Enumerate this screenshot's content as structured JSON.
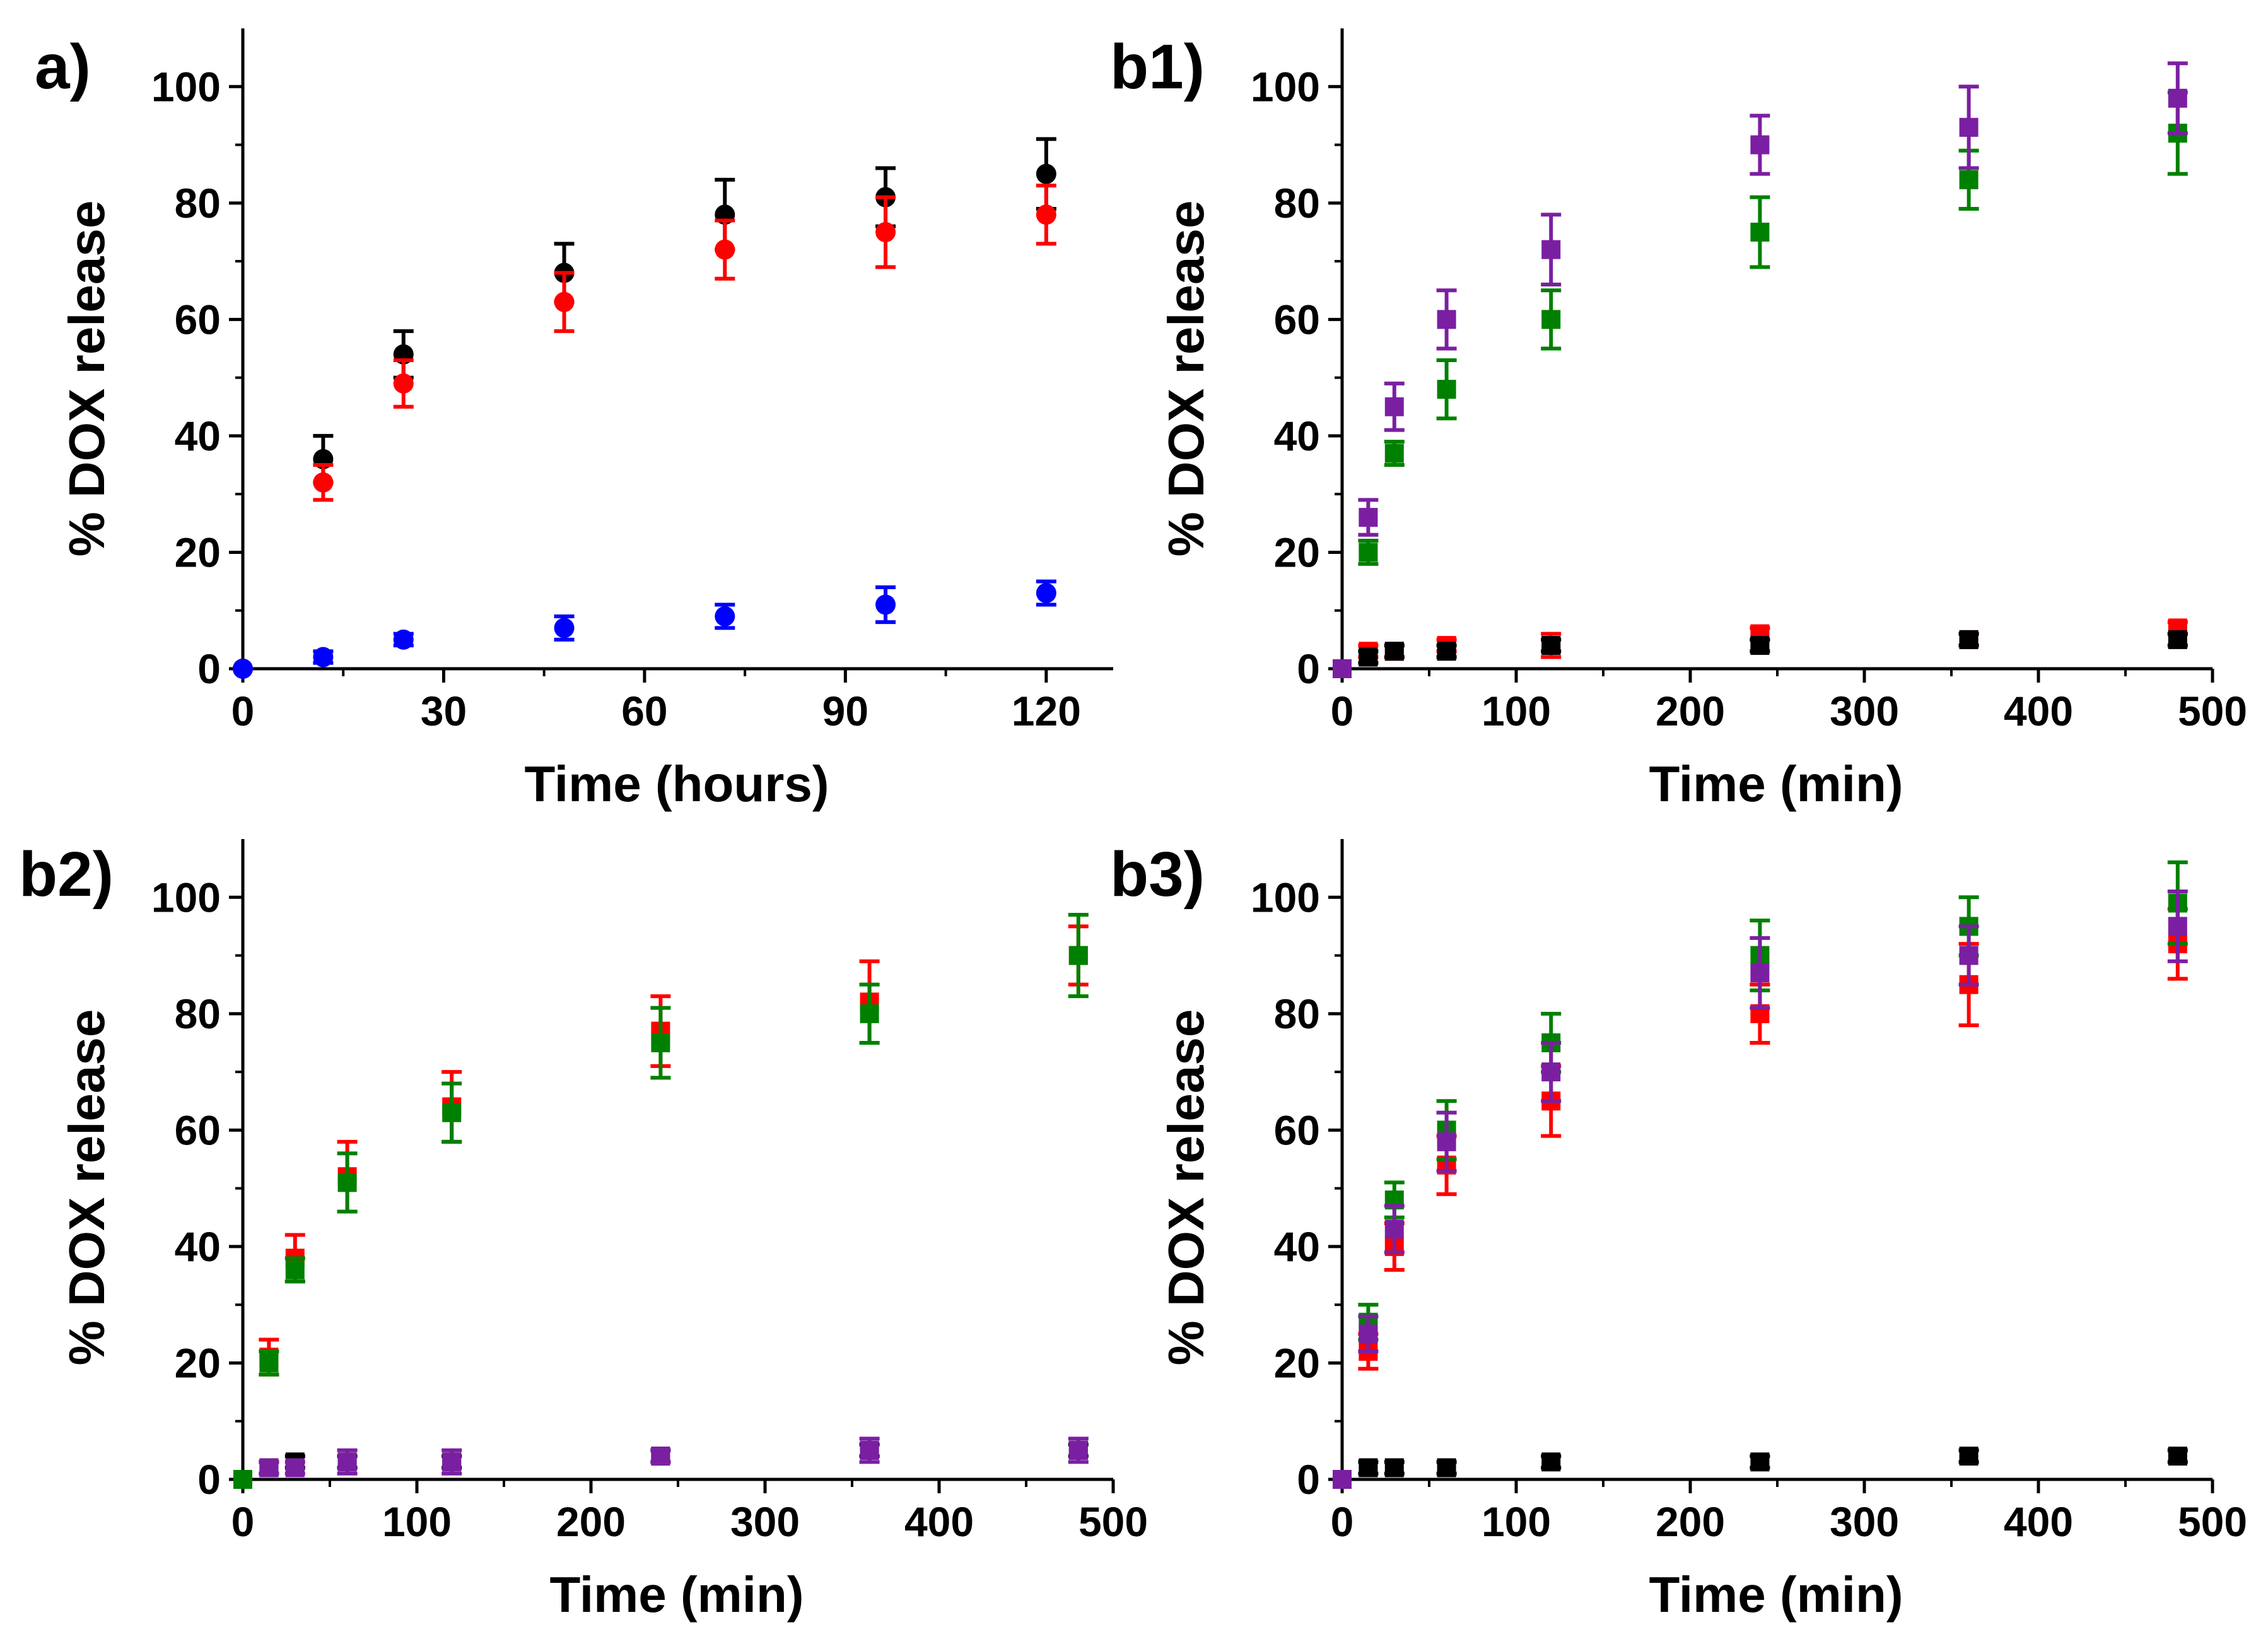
{
  "chart_data": [
    {
      "panel_label": "a)",
      "type": "scatter",
      "xlabel": "Time (hours)",
      "ylabel": "% DOX release",
      "xlim": [
        0,
        130
      ],
      "ylim": [
        0,
        110
      ],
      "xticks": [
        0,
        30,
        60,
        90,
        120
      ],
      "yticks": [
        0,
        20,
        40,
        60,
        80,
        100
      ],
      "marker": "circle",
      "series": [
        {
          "color": "#000000",
          "points": [
            [
              0,
              0,
              0
            ],
            [
              12,
              36,
              4
            ],
            [
              24,
              54,
              4
            ],
            [
              48,
              68,
              5
            ],
            [
              72,
              78,
              6
            ],
            [
              96,
              81,
              5
            ],
            [
              120,
              85,
              6
            ]
          ]
        },
        {
          "color": "#ff0000",
          "points": [
            [
              0,
              0,
              0
            ],
            [
              12,
              32,
              3
            ],
            [
              24,
              49,
              4
            ],
            [
              48,
              63,
              5
            ],
            [
              72,
              72,
              5
            ],
            [
              96,
              75,
              6
            ],
            [
              120,
              78,
              5
            ]
          ]
        },
        {
          "color": "#0000ff",
          "points": [
            [
              0,
              0,
              0
            ],
            [
              12,
              2,
              1
            ],
            [
              24,
              5,
              1
            ],
            [
              48,
              7,
              2
            ],
            [
              72,
              9,
              2
            ],
            [
              96,
              11,
              3
            ],
            [
              120,
              13,
              2
            ]
          ]
        }
      ]
    },
    {
      "panel_label": "b1)",
      "type": "scatter",
      "xlabel": "Time (min)",
      "ylabel": "% DOX release",
      "xlim": [
        0,
        500
      ],
      "ylim": [
        0,
        110
      ],
      "xticks": [
        0,
        100,
        200,
        300,
        400,
        500
      ],
      "yticks": [
        0,
        20,
        40,
        60,
        80,
        100
      ],
      "marker": "square",
      "series": [
        {
          "color": "#ff0000",
          "points": [
            [
              0,
              0,
              0
            ],
            [
              15,
              3,
              1
            ],
            [
              30,
              3,
              1
            ],
            [
              60,
              4,
              1
            ],
            [
              120,
              4,
              2
            ],
            [
              240,
              6,
              1
            ],
            [
              360,
              5,
              1
            ],
            [
              480,
              7,
              1
            ]
          ]
        },
        {
          "color": "#000000",
          "points": [
            [
              0,
              0,
              0
            ],
            [
              15,
              2,
              1
            ],
            [
              30,
              3,
              1
            ],
            [
              60,
              3,
              1
            ],
            [
              120,
              4,
              1
            ],
            [
              240,
              4,
              1
            ],
            [
              360,
              5,
              1
            ],
            [
              480,
              5,
              1
            ]
          ]
        },
        {
          "color": "#008000",
          "points": [
            [
              0,
              0,
              0
            ],
            [
              15,
              20,
              2
            ],
            [
              30,
              37,
              2
            ],
            [
              60,
              48,
              5
            ],
            [
              120,
              60,
              5
            ],
            [
              240,
              75,
              6
            ],
            [
              360,
              84,
              5
            ],
            [
              480,
              92,
              7
            ]
          ]
        },
        {
          "color": "#7b1fa2",
          "points": [
            [
              0,
              0,
              0
            ],
            [
              15,
              26,
              3
            ],
            [
              30,
              45,
              4
            ],
            [
              60,
              60,
              5
            ],
            [
              120,
              72,
              6
            ],
            [
              240,
              90,
              5
            ],
            [
              360,
              93,
              7
            ],
            [
              480,
              98,
              6
            ]
          ]
        }
      ]
    },
    {
      "panel_label": "b2)",
      "type": "scatter",
      "xlabel": "Time (min)",
      "ylabel": "% DOX release",
      "xlim": [
        0,
        500
      ],
      "ylim": [
        0,
        110
      ],
      "xticks": [
        0,
        100,
        200,
        300,
        400,
        500
      ],
      "yticks": [
        0,
        20,
        40,
        60,
        80,
        100
      ],
      "marker": "square",
      "series": [
        {
          "color": "#000000",
          "points": [
            [
              0,
              0,
              0
            ],
            [
              15,
              2,
              1
            ],
            [
              30,
              3,
              1
            ],
            [
              60,
              3,
              1
            ],
            [
              120,
              3,
              1
            ],
            [
              240,
              4,
              1
            ],
            [
              360,
              5,
              1
            ],
            [
              480,
              5,
              1
            ]
          ]
        },
        {
          "color": "#7b1fa2",
          "points": [
            [
              0,
              0,
              0
            ],
            [
              15,
              2,
              1
            ],
            [
              30,
              2,
              1
            ],
            [
              60,
              3,
              2
            ],
            [
              120,
              3,
              2
            ],
            [
              240,
              4,
              1
            ],
            [
              360,
              5,
              2
            ],
            [
              480,
              5,
              2
            ]
          ]
        },
        {
          "color": "#ff0000",
          "points": [
            [
              0,
              0,
              0
            ],
            [
              15,
              21,
              3
            ],
            [
              30,
              38,
              4
            ],
            [
              60,
              52,
              6
            ],
            [
              120,
              64,
              6
            ],
            [
              240,
              77,
              6
            ],
            [
              360,
              82,
              7
            ],
            [
              480,
              90,
              5
            ]
          ]
        },
        {
          "color": "#008000",
          "points": [
            [
              0,
              0,
              0
            ],
            [
              15,
              20,
              2
            ],
            [
              30,
              36,
              2
            ],
            [
              60,
              51,
              5
            ],
            [
              120,
              63,
              5
            ],
            [
              240,
              75,
              6
            ],
            [
              360,
              80,
              5
            ],
            [
              480,
              90,
              7
            ]
          ]
        }
      ]
    },
    {
      "panel_label": "b3)",
      "type": "scatter",
      "xlabel": "Time (min)",
      "ylabel": "% DOX release",
      "xlim": [
        0,
        500
      ],
      "ylim": [
        0,
        110
      ],
      "xticks": [
        0,
        100,
        200,
        300,
        400,
        500
      ],
      "yticks": [
        0,
        20,
        40,
        60,
        80,
        100
      ],
      "marker": "square",
      "series": [
        {
          "color": "#000000",
          "points": [
            [
              0,
              0,
              0
            ],
            [
              15,
              2,
              1
            ],
            [
              30,
              2,
              1
            ],
            [
              60,
              2,
              1
            ],
            [
              120,
              3,
              1
            ],
            [
              240,
              3,
              1
            ],
            [
              360,
              4,
              1
            ],
            [
              480,
              4,
              1
            ]
          ]
        },
        {
          "color": "#ff0000",
          "points": [
            [
              0,
              0,
              0
            ],
            [
              15,
              22,
              3
            ],
            [
              30,
              40,
              4
            ],
            [
              60,
              54,
              5
            ],
            [
              120,
              65,
              6
            ],
            [
              240,
              80,
              5
            ],
            [
              360,
              85,
              7
            ],
            [
              480,
              92,
              6
            ]
          ]
        },
        {
          "color": "#008000",
          "points": [
            [
              0,
              0,
              0
            ],
            [
              15,
              27,
              3
            ],
            [
              30,
              48,
              3
            ],
            [
              60,
              60,
              5
            ],
            [
              120,
              75,
              5
            ],
            [
              240,
              90,
              6
            ],
            [
              360,
              95,
              5
            ],
            [
              480,
              99,
              7
            ]
          ]
        },
        {
          "color": "#7b1fa2",
          "points": [
            [
              0,
              0,
              0
            ],
            [
              15,
              25,
              3
            ],
            [
              30,
              43,
              4
            ],
            [
              60,
              58,
              5
            ],
            [
              120,
              70,
              5
            ],
            [
              240,
              87,
              6
            ],
            [
              360,
              90,
              5
            ],
            [
              480,
              95,
              6
            ]
          ]
        }
      ]
    }
  ]
}
